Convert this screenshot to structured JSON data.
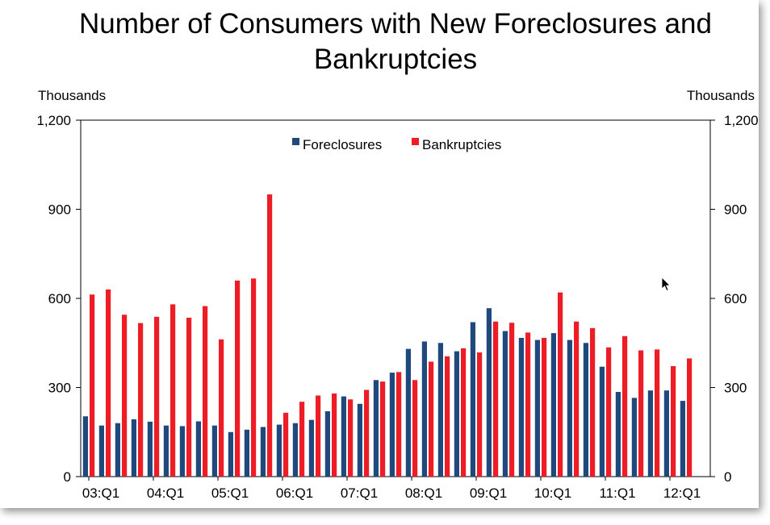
{
  "chart_data": {
    "type": "bar",
    "title": "Number of Consumers with New Foreclosures and Bankruptcies",
    "ylabel_left": "Thousands",
    "ylabel_right": "Thousands",
    "ylim": [
      0,
      1200
    ],
    "yticks": [
      0,
      300,
      600,
      900,
      1200
    ],
    "ytick_labels": [
      "0",
      "300",
      "600",
      "900",
      "1,200"
    ],
    "xtick_labels": [
      "03:Q1",
      "04:Q1",
      "05:Q1",
      "06:Q1",
      "07:Q1",
      "08:Q1",
      "09:Q1",
      "10:Q1",
      "11:Q1",
      "12:Q1"
    ],
    "legend_position": "top-center",
    "categories": [
      "03:Q1",
      "03:Q2",
      "03:Q3",
      "03:Q4",
      "04:Q1",
      "04:Q2",
      "04:Q3",
      "04:Q4",
      "05:Q1",
      "05:Q2",
      "05:Q3",
      "05:Q4",
      "06:Q1",
      "06:Q2",
      "06:Q3",
      "06:Q4",
      "07:Q1",
      "07:Q2",
      "07:Q3",
      "07:Q4",
      "08:Q1",
      "08:Q2",
      "08:Q3",
      "08:Q4",
      "09:Q1",
      "09:Q2",
      "09:Q3",
      "09:Q4",
      "10:Q1",
      "10:Q2",
      "10:Q3",
      "10:Q4",
      "11:Q1",
      "11:Q2",
      "11:Q3",
      "11:Q4",
      "12:Q1",
      "12:Q2"
    ],
    "series": [
      {
        "name": "Foreclosures",
        "color": "#1F497D",
        "values": [
          203,
          172,
          180,
          193,
          185,
          172,
          170,
          186,
          172,
          150,
          158,
          167,
          175,
          180,
          191,
          220,
          270,
          245,
          325,
          350,
          430,
          455,
          450,
          422,
          520,
          567,
          490,
          467,
          460,
          483,
          460,
          450,
          370,
          285,
          265,
          290,
          290,
          255
        ]
      },
      {
        "name": "Bankruptcies",
        "color": "#EE1C25",
        "values": [
          613,
          630,
          545,
          517,
          538,
          580,
          535,
          574,
          462,
          660,
          667,
          950,
          215,
          252,
          273,
          280,
          260,
          292,
          320,
          352,
          325,
          387,
          405,
          432,
          418,
          522,
          518,
          485,
          467,
          620,
          522,
          500,
          435,
          473,
          425,
          428,
          372,
          398
        ]
      }
    ]
  }
}
